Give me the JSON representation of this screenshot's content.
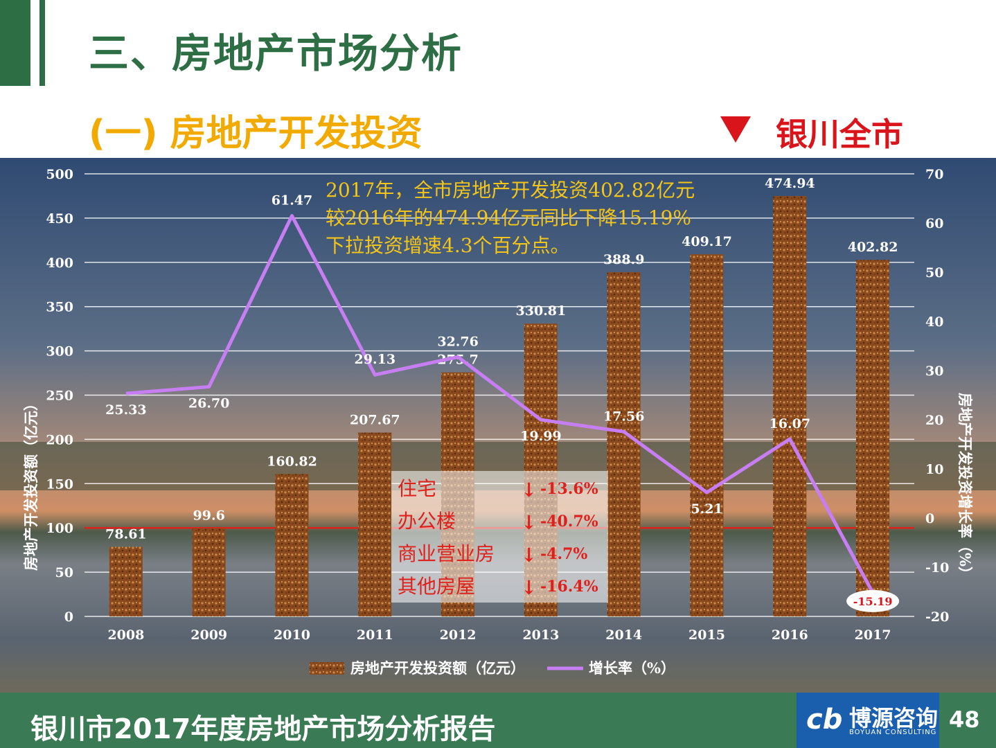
{
  "header": {
    "title": "三、房地产市场分析",
    "subtitle": "(一) 房地产开发投资",
    "region": "银川全市"
  },
  "annotation": {
    "lines": [
      "2017年，全市房地产开发投资402.82亿元",
      "较2016年的474.94亿元同比下降15.19%",
      "下拉投资增速4.3个百分点。"
    ]
  },
  "breakdown": [
    {
      "label": "住宅",
      "value": "-13.6%"
    },
    {
      "label": "办公楼",
      "value": "-40.7%"
    },
    {
      "label": "商业营业房",
      "value": "-4.7%"
    },
    {
      "label": "其他房屋",
      "value": "-16.4%"
    }
  ],
  "chart_data": {
    "type": "bar",
    "categories": [
      "2008",
      "2009",
      "2010",
      "2011",
      "2012",
      "2013",
      "2014",
      "2015",
      "2016",
      "2017"
    ],
    "series": [
      {
        "name": "房地产开发投资额（亿元）",
        "type": "bar",
        "axis": "left",
        "values": [
          78.61,
          99.6,
          160.82,
          207.67,
          275.7,
          330.81,
          388.9,
          409.17,
          474.94,
          402.82
        ],
        "labels": [
          "78.61",
          "99.6",
          "160.82",
          "207.67",
          "275.7",
          "330.81",
          "388.9",
          "409.17",
          "474.94",
          "402.82"
        ]
      },
      {
        "name": "增长率（%）",
        "type": "line",
        "axis": "right",
        "values": [
          25.33,
          26.7,
          61.47,
          29.13,
          32.76,
          19.99,
          17.56,
          5.21,
          16.07,
          -15.19
        ],
        "labels": [
          "25.33",
          "26.70",
          "61.47",
          "29.13",
          "32.76",
          "19.99",
          "17.56",
          "5.21",
          "16.07",
          "-15.19"
        ]
      }
    ],
    "ylabel": "房地产开发投资额（亿元）",
    "y2label": "房地产开发投资增长率（%）",
    "ylim": [
      0,
      500
    ],
    "yticks": [
      "0",
      "50",
      "100",
      "150",
      "200",
      "250",
      "300",
      "350",
      "400",
      "450",
      "500"
    ],
    "y2lim": [
      -20,
      70
    ],
    "y2ticks": [
      "-20",
      "-10",
      "0",
      "10",
      "20",
      "30",
      "40",
      "50",
      "60",
      "70"
    ],
    "grid": true,
    "legend_position": "bottom-center",
    "colors": {
      "bar": "#8b4a1c",
      "line": "#c77ef2",
      "grid": "#ffffff",
      "reference_line": "#e0201c"
    }
  },
  "footer": {
    "report_title": "银川市2017年度房地产市场分析报告",
    "logo_cn": "博源咨询",
    "logo_en": "BOYUAN CONSULTING",
    "page_number": "48"
  }
}
